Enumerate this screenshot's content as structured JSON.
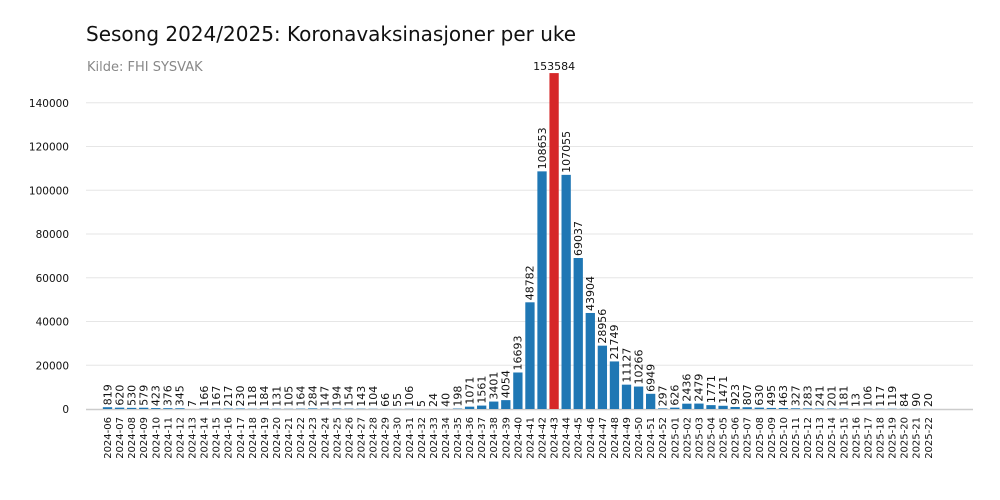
{
  "chart_data": {
    "type": "bar",
    "title": "Sesong 2024/2025: Koronavaksinasjoner per uke",
    "subtitle": "Kilde: FHI SYSVAK",
    "xlabel": "",
    "ylabel": "",
    "ylim": [
      0,
      155000
    ],
    "yticks": [
      0,
      20000,
      40000,
      60000,
      80000,
      100000,
      120000,
      140000
    ],
    "grid": true,
    "colors": {
      "bar": "#1f77b4",
      "highlight": "#d62728"
    },
    "highlight_category": "2024-43",
    "categories": [
      "2024-06",
      "2024-07",
      "2024-08",
      "2024-09",
      "2024-10",
      "2024-11",
      "2024-12",
      "2024-13",
      "2024-14",
      "2024-15",
      "2024-16",
      "2024-17",
      "2024-18",
      "2024-19",
      "2024-20",
      "2024-21",
      "2024-22",
      "2024-23",
      "2024-24",
      "2024-25",
      "2024-26",
      "2024-27",
      "2024-28",
      "2024-29",
      "2024-30",
      "2024-31",
      "2024-32",
      "2024-33",
      "2024-34",
      "2024-35",
      "2024-36",
      "2024-37",
      "2024-38",
      "2024-39",
      "2024-40",
      "2024-41",
      "2024-42",
      "2024-43",
      "2024-44",
      "2024-45",
      "2024-46",
      "2024-47",
      "2024-48",
      "2024-49",
      "2024-50",
      "2024-51",
      "2024-52",
      "2025-01",
      "2025-02",
      "2025-03",
      "2025-04",
      "2025-05",
      "2025-06",
      "2025-07",
      "2025-08",
      "2025-09",
      "2025-10",
      "2025-11",
      "2025-12",
      "2025-13",
      "2025-14",
      "2025-15",
      "2025-16",
      "2025-17",
      "2025-18",
      "2025-19",
      "2025-20",
      "2025-21",
      "2025-22"
    ],
    "values": [
      819,
      620,
      530,
      579,
      423,
      376,
      345,
      7,
      166,
      167,
      217,
      230,
      118,
      184,
      131,
      105,
      164,
      284,
      147,
      194,
      154,
      143,
      104,
      66,
      55,
      106,
      5,
      24,
      40,
      198,
      1071,
      1561,
      3401,
      4054,
      16693,
      48782,
      108653,
      153584,
      107055,
      69037,
      43904,
      28956,
      21749,
      11127,
      10266,
      6949,
      297,
      626,
      2436,
      2479,
      1771,
      1471,
      923,
      807,
      630,
      495,
      463,
      327,
      283,
      241,
      201,
      181,
      13,
      106,
      117,
      119,
      84,
      90,
      20
    ]
  }
}
